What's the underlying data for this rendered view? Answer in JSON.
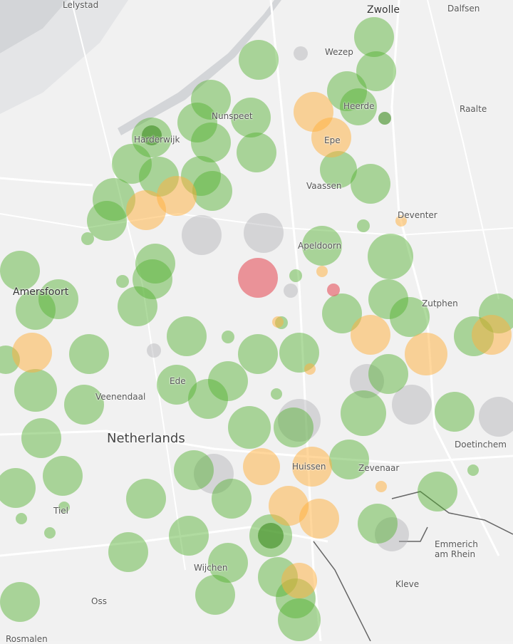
{
  "map": {
    "places": [
      {
        "name": "Lelystad"
      },
      {
        "name": "Zwolle"
      },
      {
        "name": "Dalfsen"
      },
      {
        "name": "Wezep"
      },
      {
        "name": "Heerde"
      },
      {
        "name": "Raalte"
      },
      {
        "name": "Nunspeet"
      },
      {
        "name": "Harderwijk"
      },
      {
        "name": "Epe"
      },
      {
        "name": "Vaassen"
      },
      {
        "name": "Deventer"
      },
      {
        "name": "Apeldoorn"
      },
      {
        "name": "Amersfoort"
      },
      {
        "name": "Zutphen"
      },
      {
        "name": "Veenendaal"
      },
      {
        "name": "Ede"
      },
      {
        "name": "Netherlands"
      },
      {
        "name": "Doetinchem"
      },
      {
        "name": "Huissen"
      },
      {
        "name": "Zevenaar"
      },
      {
        "name": "Tiel"
      },
      {
        "name": "Emmerich am Rhein"
      },
      {
        "name": "Wijchen"
      },
      {
        "name": "Kleve"
      },
      {
        "name": "Oss"
      },
      {
        "name": "Rosmalen"
      }
    ]
  }
}
